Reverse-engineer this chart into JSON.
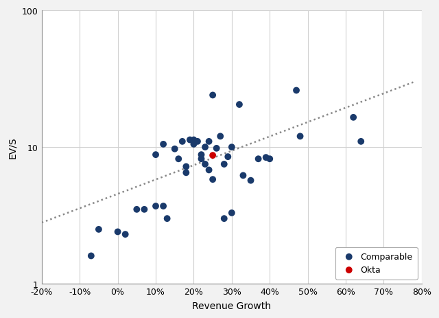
{
  "xlabel": "Revenue Growth",
  "ylabel": "EV/S",
  "comparable_x": [
    -0.07,
    -0.05,
    0.0,
    0.02,
    0.05,
    0.07,
    0.1,
    0.1,
    0.12,
    0.12,
    0.13,
    0.15,
    0.16,
    0.17,
    0.18,
    0.18,
    0.19,
    0.2,
    0.2,
    0.21,
    0.22,
    0.22,
    0.23,
    0.23,
    0.24,
    0.24,
    0.25,
    0.25,
    0.26,
    0.27,
    0.28,
    0.28,
    0.29,
    0.3,
    0.3,
    0.32,
    0.33,
    0.35,
    0.37,
    0.39,
    0.4,
    0.47,
    0.48,
    0.62,
    0.64
  ],
  "comparable_y": [
    1.6,
    2.5,
    2.4,
    2.3,
    3.5,
    3.5,
    8.8,
    3.7,
    10.5,
    3.7,
    3.0,
    9.7,
    8.2,
    11.0,
    7.2,
    6.5,
    11.3,
    10.5,
    11.3,
    11.0,
    8.8,
    8.2,
    7.5,
    10.0,
    11.0,
    6.8,
    24.0,
    5.8,
    9.8,
    12.0,
    7.5,
    3.0,
    8.5,
    10.0,
    3.3,
    20.5,
    6.2,
    5.7,
    8.2,
    8.4,
    8.2,
    26.0,
    12.0,
    16.5,
    11.0
  ],
  "okta_x": [
    0.25
  ],
  "okta_y": [
    8.7
  ],
  "trendline_x": [
    -0.2,
    0.78
  ],
  "trendline_y": [
    2.8,
    30.0
  ],
  "comparable_color": "#1a3a6b",
  "okta_color": "#cc0000",
  "trendline_color": "#888888",
  "xlim": [
    -0.2,
    0.8
  ],
  "ylim_log": [
    1,
    100
  ],
  "xticklabels": [
    "-20%",
    "-10%",
    "0%",
    "10%",
    "20%",
    "30%",
    "40%",
    "50%",
    "60%",
    "70%",
    "80%"
  ],
  "xticks": [
    -0.2,
    -0.1,
    0.0,
    0.1,
    0.2,
    0.3,
    0.4,
    0.5,
    0.6,
    0.7,
    0.8
  ],
  "marker_size": 50,
  "bg_color": "#f2f2f2",
  "plot_bg_color": "#ffffff",
  "grid_color": "#d0d0d0"
}
